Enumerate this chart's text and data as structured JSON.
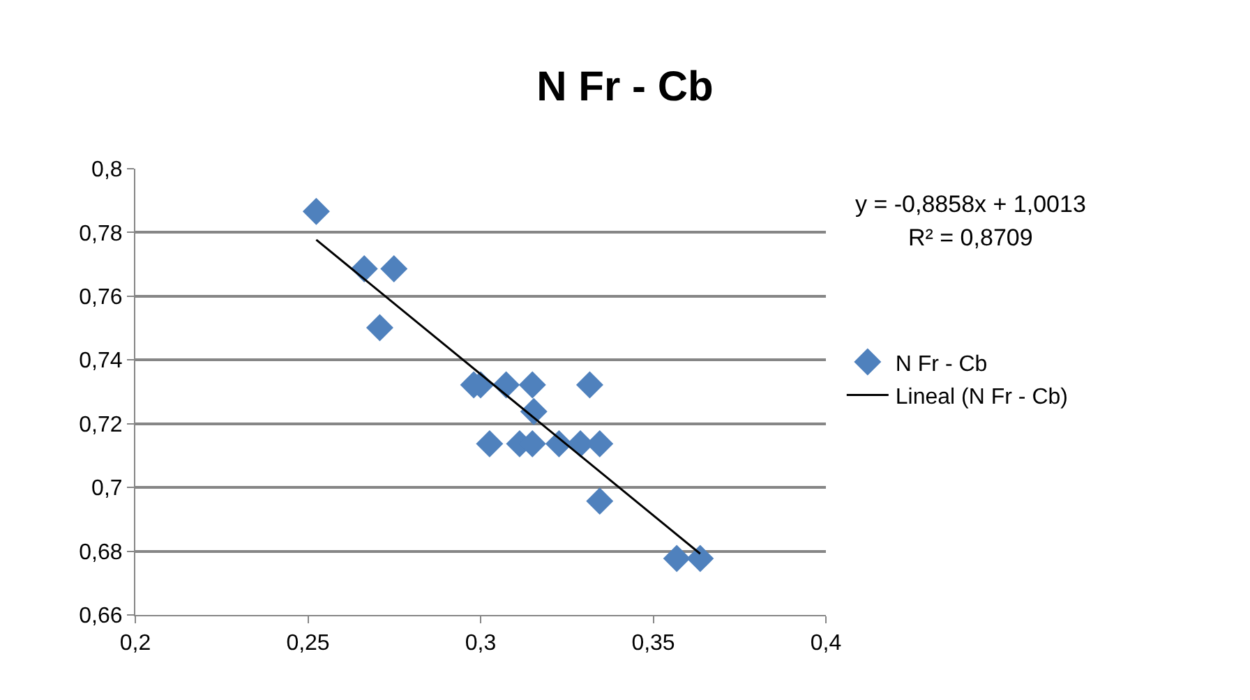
{
  "chart_data": {
    "type": "scatter",
    "title": "N Fr - Cb",
    "series": [
      {
        "name": "N Fr - Cb",
        "marker": "diamond",
        "color": "#4f81bd",
        "x": [
          0.2524,
          0.2663,
          0.2749,
          0.2708,
          0.298,
          0.3,
          0.3074,
          0.315,
          0.3316,
          0.3154,
          0.3026,
          0.3113,
          0.315,
          0.3227,
          0.3289,
          0.3345,
          0.3345,
          0.3568,
          0.3636
        ],
        "values": [
          0.7866,
          0.7686,
          0.7686,
          0.7501,
          0.7322,
          0.7322,
          0.7322,
          0.7322,
          0.7322,
          0.7238,
          0.7137,
          0.7137,
          0.7137,
          0.7137,
          0.7137,
          0.7137,
          0.6957,
          0.6777,
          0.6777
        ]
      },
      {
        "name": "Lineal (N Fr - Cb)",
        "type": "line",
        "marker": "none",
        "line_style": "solid",
        "color": "#000000",
        "x": [
          0.2524,
          0.3636
        ],
        "values": [
          0.7777,
          0.6792
        ]
      }
    ],
    "xlim": [
      0.2,
      0.4
    ],
    "xticks": [
      {
        "value": 0.2,
        "label": "0,2"
      },
      {
        "value": 0.25,
        "label": "0,25"
      },
      {
        "value": 0.3,
        "label": "0,3"
      },
      {
        "value": 0.35,
        "label": "0,35"
      },
      {
        "value": 0.4,
        "label": "0,4"
      }
    ],
    "ylim": [
      0.66,
      0.8
    ],
    "yticks": [
      {
        "value": 0.66,
        "label": "0,66"
      },
      {
        "value": 0.68,
        "label": "0,68"
      },
      {
        "value": 0.7,
        "label": "0,7"
      },
      {
        "value": 0.72,
        "label": "0,72"
      },
      {
        "value": 0.74,
        "label": "0,74"
      },
      {
        "value": 0.76,
        "label": "0,76"
      },
      {
        "value": 0.78,
        "label": "0,78"
      },
      {
        "value": 0.8,
        "label": "0,8"
      }
    ],
    "grid": "y",
    "legend": "right",
    "annotations": [
      "y = -0,8858x + 1,0013",
      "R² = 0,8709"
    ]
  }
}
